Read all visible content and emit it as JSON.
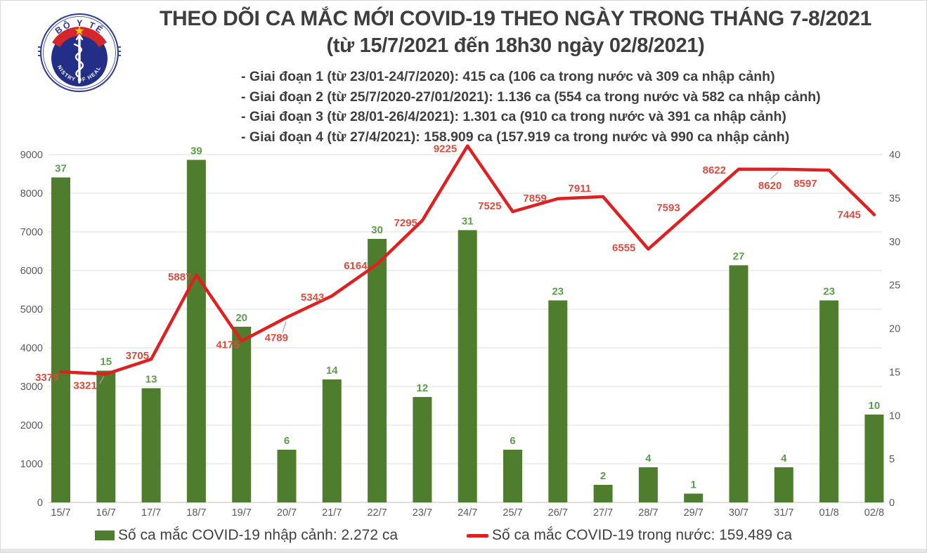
{
  "logo": {
    "top_text": "BỘ Y TẾ",
    "bottom_text": "MINISTRY OF HEALTH"
  },
  "header": {
    "title": "THEO DÕI CA MẮC MỚI COVID-19 THEO NGÀY TRONG THÁNG 7-8/2021",
    "subtitle": "(từ 15/7/2021 đến 18h30 ngày 02/8/2021)"
  },
  "phases": [
    "- Giai đoạn 1 (từ 23/01-24/7/2020): 415 ca (106 ca trong nước và 309 ca nhập cảnh)",
    "- Giai đoạn 2 (từ 25/7/2020-27/01/2021): 1.136 ca (554 ca trong nước và 582 ca nhập cảnh)",
    "- Giai đoạn 3 (từ 28/01-26/4/2021): 1.301 ca (910 ca trong nước và 391 ca nhập cảnh)",
    "- Giai đoạn 4 (từ 27/4/2021): 158.909 ca (157.919 ca trong nước và 990 ca nhập cảnh)"
  ],
  "chart_data": {
    "type": "bar+line",
    "categories": [
      "15/7",
      "16/7",
      "17/7",
      "18/7",
      "19/7",
      "20/7",
      "21/7",
      "22/7",
      "23/7",
      "24/7",
      "25/7",
      "26/7",
      "27/7",
      "28/7",
      "29/7",
      "30/7",
      "31/7",
      "01/8",
      "02/8"
    ],
    "series": [
      {
        "name": "Số ca mắc COVID-19 nhập cảnh",
        "type": "bar",
        "axis": "right",
        "color": "#4e7d2d",
        "values": [
          37,
          15,
          13,
          39,
          20,
          6,
          14,
          30,
          12,
          31,
          6,
          23,
          2,
          4,
          1,
          27,
          4,
          23,
          10
        ]
      },
      {
        "name": "Số ca mắc COVID-19 trong nước",
        "type": "line",
        "axis": "left",
        "color": "#e02020",
        "values": [
          3379,
          3321,
          3705,
          5887,
          4175,
          4789,
          5343,
          6164,
          7295,
          9225,
          7525,
          7859,
          7911,
          6555,
          7593,
          8622,
          8620,
          8597,
          7445
        ]
      }
    ],
    "left_axis": {
      "min": 0,
      "max": 9000,
      "step": 1000
    },
    "right_axis": {
      "min": 0,
      "max": 40,
      "step": 5
    },
    "grid": true,
    "legend_position": "bottom"
  },
  "legend": [
    {
      "label": "Số ca mắc COVID-19 nhập cảnh: 2.272 ca",
      "marker": "square",
      "color": "#4e7d2d"
    },
    {
      "label": "Số ca mắc COVID-19 trong nước: 159.489 ca",
      "marker": "line",
      "color": "#e02020"
    }
  ],
  "colors": {
    "bar": "#4e7d2d",
    "bar_label": "#5d9c4a",
    "line": "#e02020",
    "line_label": "#dd4b3e",
    "grid": "#dcdcdc",
    "axis_text": "#595959",
    "heading_text": "#3e3e3e"
  }
}
